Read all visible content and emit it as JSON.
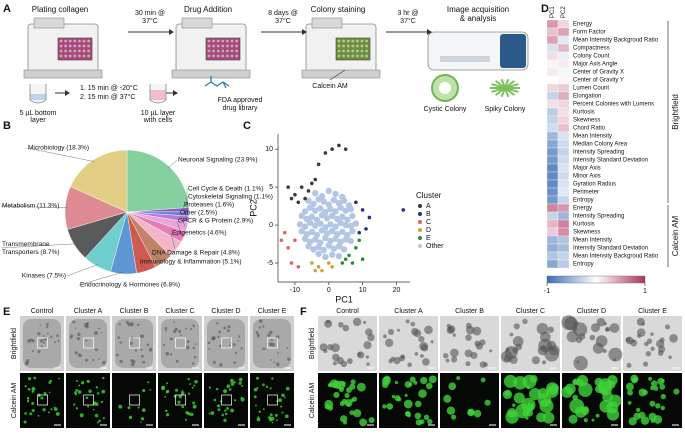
{
  "panel_a": {
    "letter": "A",
    "steps": [
      [
        "Plating collagen"
      ],
      [
        "Drug Addition"
      ],
      [
        "Colony staining"
      ],
      [
        "Image acquisition",
        "& analysis"
      ]
    ],
    "transitions": [
      [
        "30 min @",
        "37°C"
      ],
      [
        "8 days @",
        "37°C"
      ],
      [
        "3 hr @",
        "37°C"
      ]
    ],
    "plating_steps": [
      "1. 15 min @ -20°C",
      "2. 15 min @ 37°C"
    ],
    "bottom_layer": [
      "5 µL bottom",
      "layer"
    ],
    "cell_layer": [
      "10 µL layer",
      "with cells"
    ],
    "drug_library": [
      "FDA approved",
      "drug library"
    ],
    "stain": "Calcein AM",
    "colonies": [
      "Cystic Colony",
      "Spiky Colony"
    ]
  },
  "chart_data": [
    {
      "type": "pie",
      "panel": "B",
      "labels": [
        "Neuronal Signaling (23.9%)",
        "Cell Cycle & Death (1.1%)",
        "Cytoskeletal Signaling (1.1%)",
        "Proteases (1.6%)",
        "Other (2.5%)",
        "GPCR & G Protein (2.9%)",
        "Epigenetics (4.6%)",
        "DNA Damage & Repair (4.8%)",
        "Immunology & Inflammation (5.1%)",
        "Endocrinology & Hormones (6.8%)",
        "Kinases (7.5%)",
        "Transmembrane Transporters (8.7%)",
        "Metabolism (11.3%)",
        "Microbiology (18.3%)"
      ],
      "values": [
        23.9,
        1.1,
        1.1,
        1.6,
        2.5,
        2.9,
        4.6,
        4.8,
        5.1,
        6.8,
        7.5,
        8.7,
        11.3,
        18.3
      ],
      "colors": [
        "#86cf9e",
        "#8a5cc7",
        "#6a7fd1",
        "#b77bd6",
        "#e7a6d9",
        "#e87cb9",
        "#f2b6c9",
        "#c2826a",
        "#cf5a4e",
        "#5e96d6",
        "#6fcfcf",
        "#5a5a5a",
        "#dd8a92",
        "#e2cf85"
      ]
    },
    {
      "type": "scatter",
      "panel": "C",
      "xlabel": "PC1",
      "ylabel": "PC2",
      "xlim": [
        -15,
        24
      ],
      "ylim": [
        -7.5,
        12
      ],
      "xticks": [
        -10,
        0,
        10,
        20
      ],
      "yticks": [
        -5,
        0,
        5,
        10
      ],
      "legend_title": "Cluster",
      "series": [
        {
          "name": "Other",
          "color": "#b3c6e6",
          "x": [
            -4,
            -2,
            0,
            2,
            4,
            -6,
            -4.5,
            -3,
            -1.5,
            0,
            1.5,
            3,
            4.5,
            6,
            -7,
            -5.5,
            -4,
            -2.5,
            -1,
            0.5,
            2,
            3.5,
            5,
            6.5,
            -8,
            -6.5,
            -5,
            -3.5,
            -2,
            -0.5,
            1,
            2.5,
            4,
            5.5,
            7,
            -8.5,
            -7,
            -5.5,
            -4,
            -2.5,
            -1,
            0.5,
            2,
            3.5,
            5,
            6.5,
            8,
            -8,
            -6.5,
            -5,
            -3.5,
            -2,
            -0.5,
            1,
            2.5,
            4,
            5.5,
            7,
            -7,
            -5.5,
            -4,
            -2.5,
            -1,
            0.5,
            2,
            3.5,
            5,
            6.5,
            -6,
            -4.5,
            -3,
            -1.5,
            0,
            1.5,
            3,
            4.5,
            -3,
            -1,
            1,
            3
          ],
          "y": [
            4.2,
            3.8,
            4.5,
            4.1,
            3.7,
            3.2,
            2.8,
            3.4,
            3.1,
            2.7,
            3.3,
            2.9,
            3.2,
            2.6,
            1.8,
            2.3,
            1.9,
            2.2,
            1.7,
            2.1,
            1.8,
            2.3,
            1.9,
            2.1,
            1.2,
            0.8,
            1.1,
            0.7,
            1.3,
            0.9,
            1.2,
            0.8,
            1.1,
            0.7,
            1.2,
            0.1,
            -0.2,
            0.3,
            -0.1,
            0.2,
            -0.3,
            0.1,
            -0.2,
            0.3,
            0,
            -0.1,
            0.2,
            -0.8,
            -1.2,
            -0.9,
            -1.3,
            -0.7,
            -1.1,
            -0.8,
            -1.2,
            -0.9,
            -1.3,
            -0.8,
            -1.8,
            -2.2,
            -1.9,
            -2.3,
            -1.7,
            -2.1,
            -1.8,
            -2.2,
            -1.9,
            -2.1,
            -2.8,
            -3.2,
            -2.9,
            -3.3,
            -2.7,
            -3.1,
            -2.8,
            -3.2,
            -3.8,
            -4.2,
            -3.9,
            -4.1
          ]
        },
        {
          "name": "A",
          "color": "#3a3a3a",
          "x": [
            -12,
            -10,
            -8,
            -7,
            -5,
            -3,
            -1,
            1,
            3,
            5,
            -9,
            -11,
            -6,
            -4
          ],
          "y": [
            5,
            4,
            5,
            3.5,
            5.5,
            8,
            9.5,
            10,
            10.5,
            10,
            3,
            3.5,
            4.5,
            6
          ]
        },
        {
          "name": "B",
          "color": "#2b2d7a",
          "x": [
            8,
            10,
            12,
            9,
            11,
            22
          ],
          "y": [
            3,
            2,
            1,
            -1,
            -0.5,
            2
          ]
        },
        {
          "name": "C",
          "color": "#d9675f",
          "x": [
            -14,
            -12,
            -11,
            -9,
            -13,
            -10
          ],
          "y": [
            -2,
            -3,
            -5,
            -5.5,
            -1,
            -2
          ]
        },
        {
          "name": "D",
          "color": "#c8a43a",
          "x": [
            -5,
            -3,
            -2,
            0,
            -4,
            1
          ],
          "y": [
            -5,
            -5.5,
            -6,
            -5,
            -6,
            -5.5
          ]
        },
        {
          "name": "E",
          "color": "#2e8b3e",
          "x": [
            4,
            6,
            8,
            9,
            7,
            10,
            5
          ],
          "y": [
            -5,
            -4,
            -3,
            -2,
            -5,
            -4.5,
            -4.5
          ]
        }
      ],
      "legend_order": [
        "A",
        "B",
        "C",
        "D",
        "E",
        "Other"
      ]
    },
    {
      "type": "heatmap",
      "panel": "D",
      "columns": [
        "PC1",
        "PC2"
      ],
      "groups": [
        {
          "name": "Brightfield",
          "rows": [
            "Energy",
            "Form Factor",
            "Mean Intensity Backgroud Ratio",
            "Compactness",
            "Colony Count",
            "Major Axis Angle",
            "Center of Gravity X",
            "Center of Gravity Y",
            "Lumen Count",
            "Elongation",
            "Percent Colonies with Lumens",
            "Kurtosis",
            "Skewness",
            "Chord Ratio",
            "Mean Intensity",
            "Median Colony Area",
            "Intensity Spreading",
            "Intensity Standard Deviation",
            "Major Axis",
            "Minor Axis",
            "Gyration Radius",
            "Perimeter",
            "Entropy"
          ],
          "values": [
            [
              0.5,
              0.2
            ],
            [
              0.3,
              0.45
            ],
            [
              0.45,
              -0.15
            ],
            [
              -0.2,
              0.35
            ],
            [
              0.15,
              -0.1
            ],
            [
              0.05,
              0.1
            ],
            [
              0.1,
              -0.05
            ],
            [
              0,
              0.05
            ],
            [
              0.2,
              0.25
            ],
            [
              -0.3,
              0.4
            ],
            [
              0.15,
              0.2
            ],
            [
              -0.35,
              0.15
            ],
            [
              -0.3,
              0.2
            ],
            [
              -0.25,
              0.3
            ],
            [
              -0.5,
              -0.2
            ],
            [
              -0.6,
              -0.25
            ],
            [
              -0.7,
              -0.3
            ],
            [
              -0.7,
              -0.25
            ],
            [
              -0.8,
              -0.2
            ],
            [
              -0.8,
              -0.25
            ],
            [
              -0.8,
              -0.2
            ],
            [
              -0.75,
              -0.15
            ],
            [
              -0.7,
              -0.3
            ]
          ]
        },
        {
          "name": "Calcein AM",
          "rows": [
            "Energy",
            "Intensity Spreading",
            "Kurtosis",
            "Skewness",
            "Mean Intensity",
            "Intensity Standard Deviation",
            "Mean Intensity Backgroud Ratio",
            "Entropy"
          ],
          "values": [
            [
              0.6,
              0.5
            ],
            [
              -0.3,
              -0.5
            ],
            [
              0.35,
              0.6
            ],
            [
              0.25,
              0.55
            ],
            [
              -0.5,
              -0.4
            ],
            [
              -0.55,
              -0.45
            ],
            [
              -0.4,
              -0.3
            ],
            [
              -0.6,
              -0.35
            ]
          ]
        }
      ],
      "clim": [
        -1,
        1
      ],
      "cticks": [
        -1,
        1
      ],
      "colormap": [
        "#3a6db5",
        "#ffffff",
        "#b03060"
      ]
    }
  ],
  "panel_e": {
    "letter": "E",
    "columns": [
      "Control",
      "Cluster A",
      "Cluster B",
      "Cluster C",
      "Cluster D",
      "Cluster E"
    ],
    "rows": [
      "Brightfield",
      "Calcein AM"
    ]
  },
  "panel_f": {
    "letter": "F",
    "columns": [
      "Control",
      "Cluster A",
      "Cluster B",
      "Cluster C",
      "Cluster D",
      "Cluster E"
    ],
    "rows": [
      "Brightfield",
      "Calcein AM"
    ]
  }
}
